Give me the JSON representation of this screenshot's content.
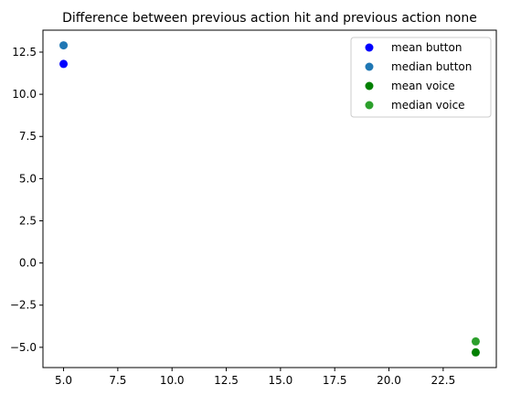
{
  "chart_data": {
    "type": "scatter",
    "title": "Difference between previous action hit and previous action none",
    "xlabel": "",
    "ylabel": "",
    "xlim": [
      4.05,
      24.95
    ],
    "ylim": [
      -6.2,
      13.8
    ],
    "xticks": [
      5.0,
      7.5,
      10.0,
      12.5,
      15.0,
      17.5,
      20.0,
      22.5
    ],
    "xtick_labels": [
      "5.0",
      "7.5",
      "10.0",
      "12.5",
      "15.0",
      "17.5",
      "20.0",
      "22.5"
    ],
    "yticks": [
      -5.0,
      -2.5,
      0.0,
      2.5,
      5.0,
      7.5,
      10.0,
      12.5
    ],
    "ytick_labels": [
      "−5.0",
      "−2.5",
      "0.0",
      "2.5",
      "5.0",
      "7.5",
      "10.0",
      "12.5"
    ],
    "grid": false,
    "legend_position": "top-right",
    "series": [
      {
        "name": "mean button",
        "color": "#0000ff",
        "points": [
          [
            5,
            11.8
          ]
        ]
      },
      {
        "name": "median button",
        "color": "#1f77b4",
        "points": [
          [
            5,
            12.9
          ]
        ]
      },
      {
        "name": "mean voice",
        "color": "#008000",
        "points": [
          [
            24,
            -5.3
          ]
        ]
      },
      {
        "name": "median voice",
        "color": "#2ca02c",
        "points": [
          [
            24,
            -4.65
          ]
        ]
      }
    ]
  }
}
